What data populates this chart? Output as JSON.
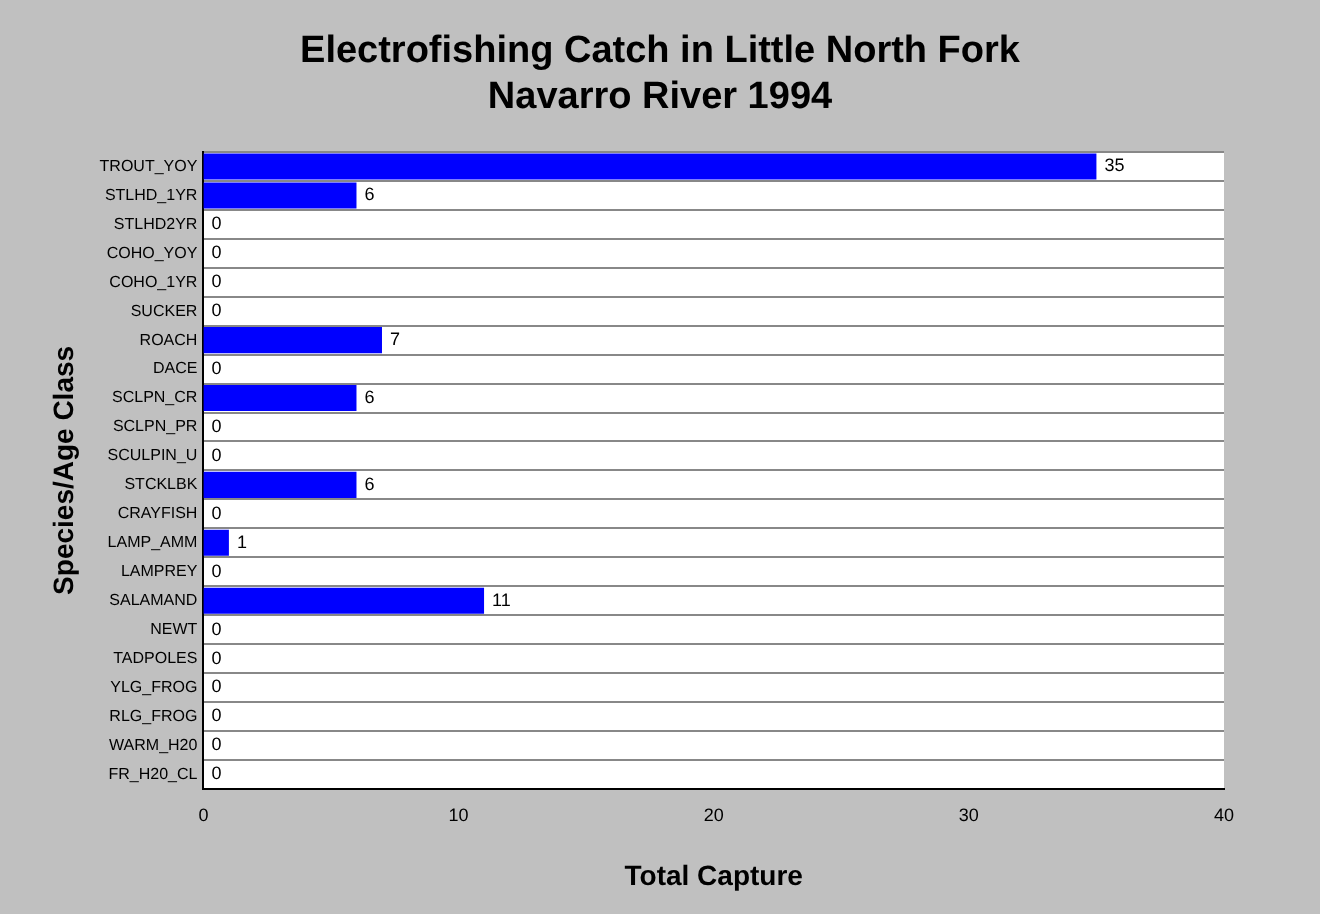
{
  "chart_data": {
    "type": "bar",
    "orientation": "horizontal",
    "title": "Electrofishing Catch in Little North Fork Navarro River 1994",
    "xlabel": "Total Capture",
    "ylabel": "Species/Age Class",
    "categories": [
      "TROUT_YOY",
      "STLHD_1YR",
      "STLHD2YR",
      "COHO_YOY",
      "COHO_1YR",
      "SUCKER",
      "ROACH",
      "DACE",
      "SCLPN_CR",
      "SCLPN_PR",
      "SCULPIN_U",
      "STCKLBK",
      "CRAYFISH",
      "LAMP_AMM",
      "LAMPREY",
      "SALAMAND",
      "NEWT",
      "TADPOLES",
      "YLG_FROG",
      "RLG_FROG",
      "WARM_H20",
      "FR_H20_CL"
    ],
    "values": [
      35,
      6,
      0,
      0,
      0,
      0,
      7,
      0,
      6,
      0,
      0,
      6,
      0,
      1,
      0,
      11,
      0,
      0,
      0,
      0,
      0,
      0
    ],
    "color": "#0000ff",
    "xlim": [
      0,
      40
    ],
    "xticks": [
      0,
      10,
      20,
      30,
      40
    ],
    "grid": "y",
    "data_labels": true
  }
}
